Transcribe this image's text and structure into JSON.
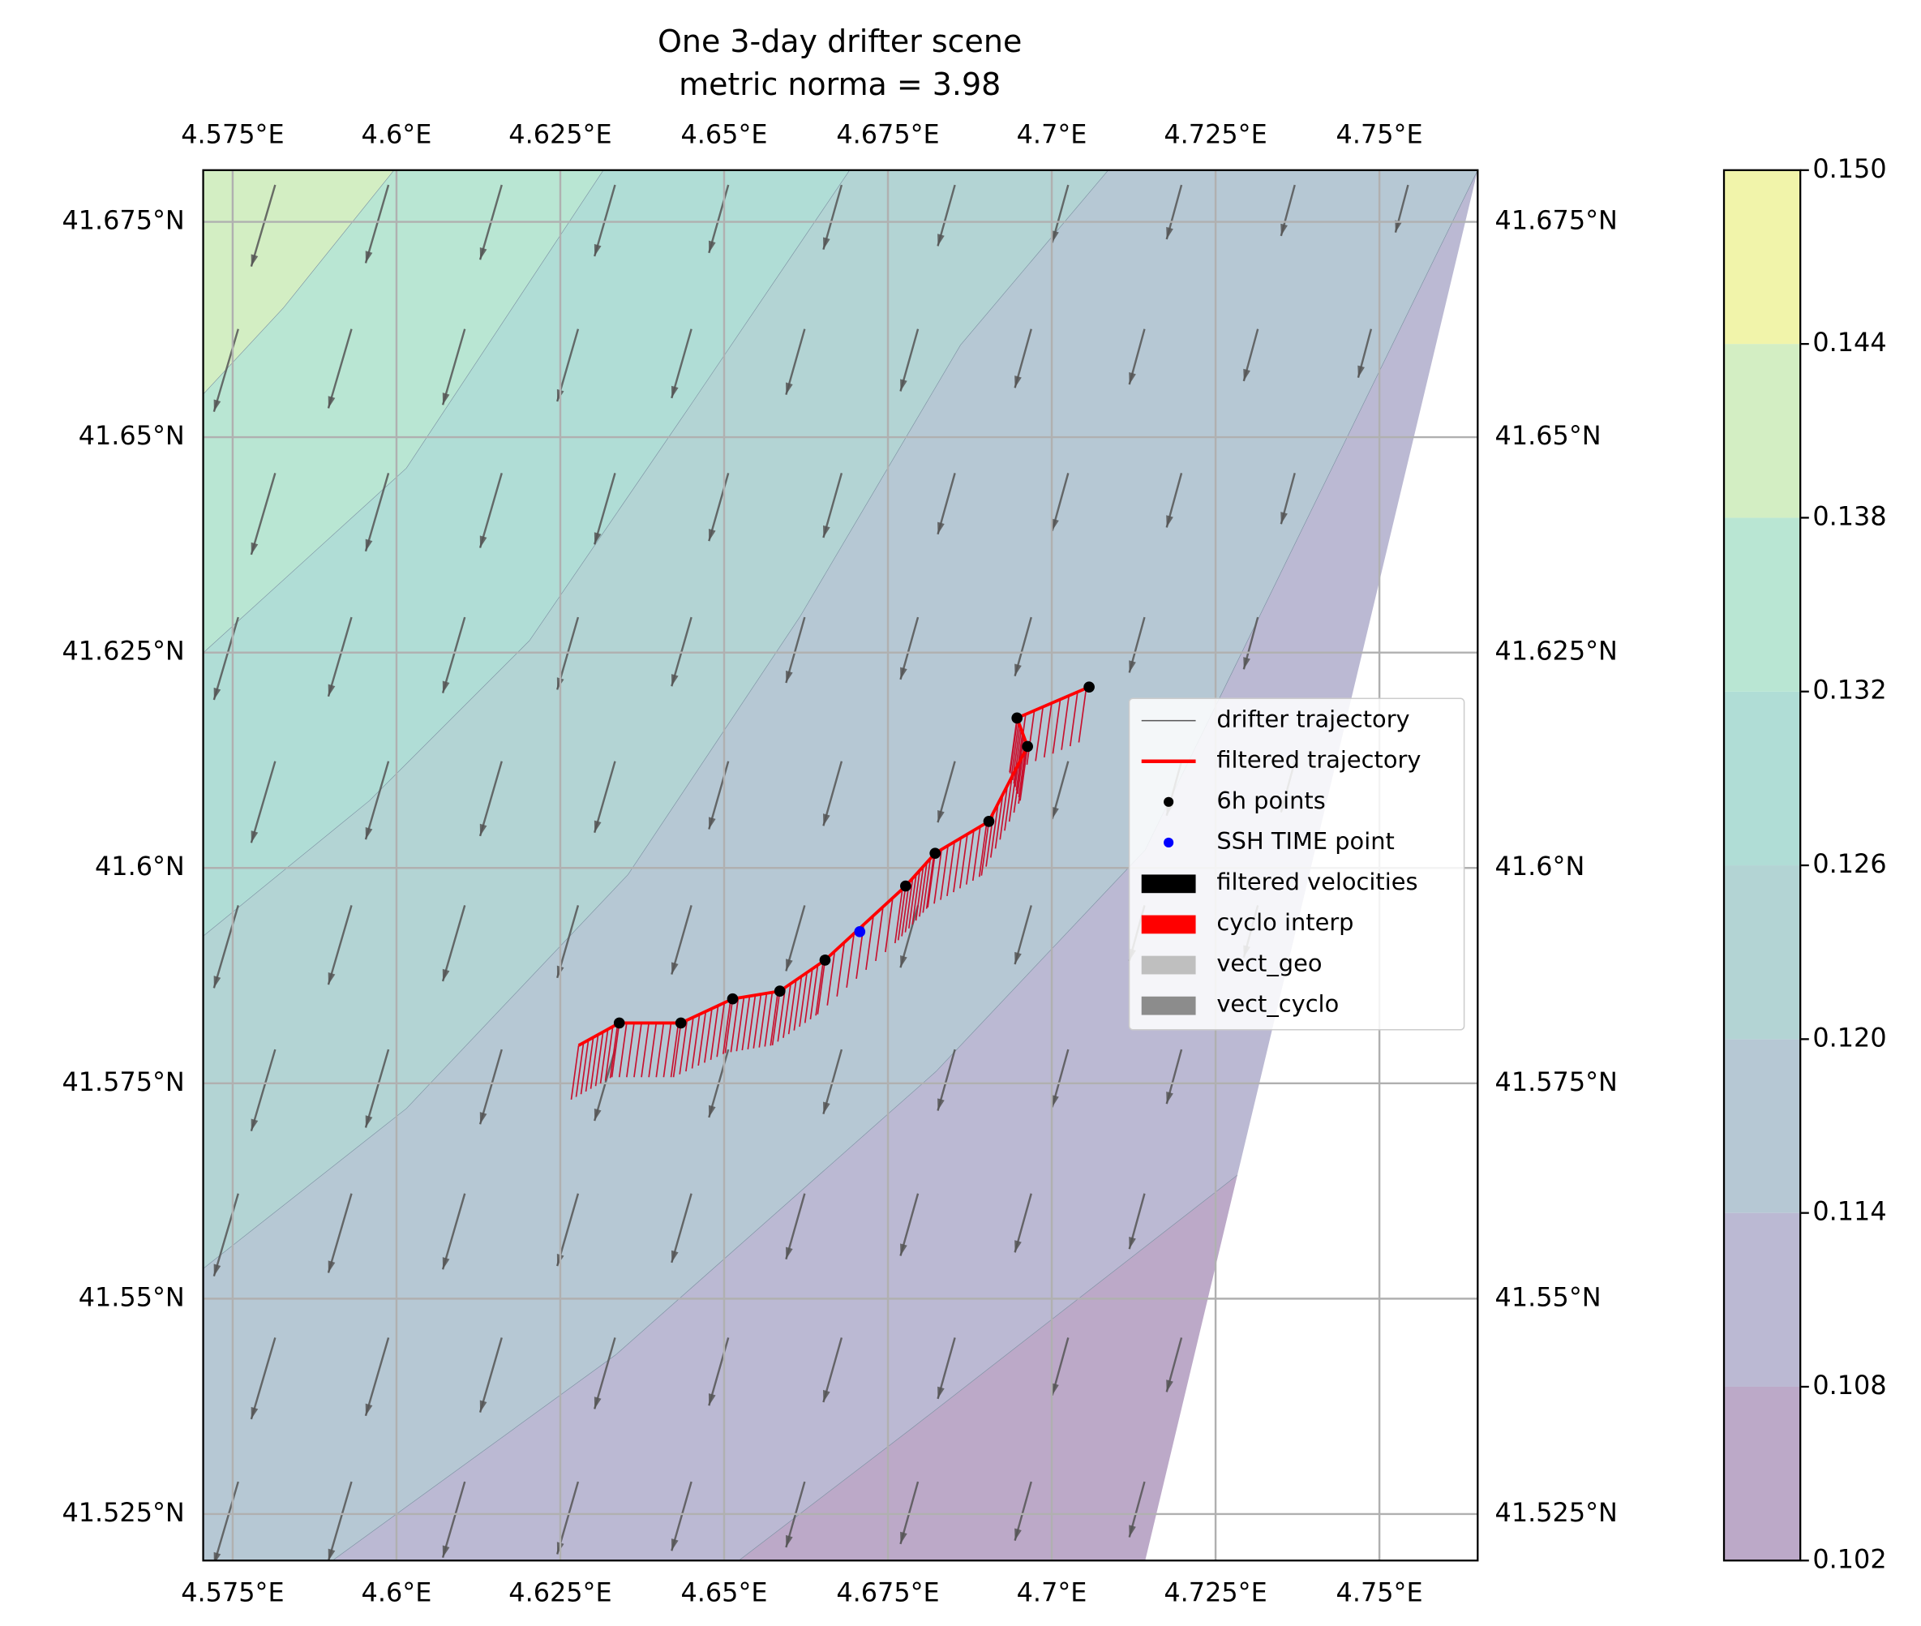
{
  "chart_data": {
    "type": "map",
    "title": "One 3-day drifter scene",
    "subtitle": "metric norma = 3.98",
    "xlim": [
      4.5705,
      4.765
    ],
    "ylim": [
      41.5196,
      41.681
    ],
    "xticks": [
      {
        "value": 4.575,
        "label": "4.575°E"
      },
      {
        "value": 4.6,
        "label": "4.6°E"
      },
      {
        "value": 4.625,
        "label": "4.625°E"
      },
      {
        "value": 4.65,
        "label": "4.65°E"
      },
      {
        "value": 4.675,
        "label": "4.675°E"
      },
      {
        "value": 4.7,
        "label": "4.7°E"
      },
      {
        "value": 4.725,
        "label": "4.725°E"
      },
      {
        "value": 4.75,
        "label": "4.75°E"
      }
    ],
    "yticks": [
      {
        "value": 41.525,
        "label": "41.525°N"
      },
      {
        "value": 41.55,
        "label": "41.55°N"
      },
      {
        "value": 41.575,
        "label": "41.575°N"
      },
      {
        "value": 41.6,
        "label": "41.6°N"
      },
      {
        "value": 41.625,
        "label": "41.625°N"
      },
      {
        "value": 41.65,
        "label": "41.65°N"
      },
      {
        "value": 41.675,
        "label": "41.675°N"
      }
    ],
    "grid": true,
    "series": [
      {
        "name": "drifter trajectory",
        "kind": "line",
        "color": "#555555",
        "x": [
          4.6278,
          4.634,
          4.6434,
          4.6513,
          4.6585,
          4.6654,
          4.6777,
          4.6822,
          4.6904,
          4.6963,
          4.6947,
          4.7057
        ],
        "y": [
          41.5794,
          41.582,
          41.582,
          41.5848,
          41.5857,
          41.5893,
          41.5979,
          41.6017,
          41.6054,
          41.6141,
          41.6174,
          41.621
        ]
      },
      {
        "name": "filtered trajectory",
        "kind": "line",
        "color": "#ff0000",
        "x": [
          4.6278,
          4.634,
          4.6434,
          4.6513,
          4.6585,
          4.6654,
          4.6777,
          4.6822,
          4.6904,
          4.6963,
          4.6947,
          4.7057
        ],
        "y": [
          41.5794,
          41.582,
          41.582,
          41.5848,
          41.5857,
          41.5893,
          41.5979,
          41.6017,
          41.6054,
          41.6141,
          41.6174,
          41.621
        ]
      },
      {
        "name": "6h points",
        "kind": "scatter",
        "color": "#000000",
        "x": [
          4.634,
          4.6434,
          4.6513,
          4.6585,
          4.6654,
          4.6777,
          4.6822,
          4.6904,
          4.6963,
          4.6947,
          4.7057
        ],
        "y": [
          41.582,
          41.582,
          41.5848,
          41.5857,
          41.5893,
          41.5979,
          41.6017,
          41.6054,
          41.6141,
          41.6174,
          41.621
        ]
      },
      {
        "name": "SSH TIME point",
        "kind": "scatter",
        "color": "#0000ff",
        "x": [
          4.6707
        ],
        "y": [
          41.5926
        ]
      }
    ],
    "legend_patches": [
      {
        "name": "filtered velocities",
        "color": "#000000"
      },
      {
        "name": "cyclo interp",
        "color": "#ff0000"
      },
      {
        "name": "vect_geo",
        "color": "#bfbfbf"
      },
      {
        "name": "vect_cyclo",
        "color": "#8c8c8c"
      }
    ],
    "colorbar": {
      "clim": [
        0.102,
        0.15
      ],
      "ticks": [
        0.102,
        0.108,
        0.114,
        {
          "value": 0.12,
          "label": "0.120"
        },
        0.126,
        0.132,
        0.138,
        0.144,
        {
          "value": 0.15,
          "label": "0.150"
        }
      ],
      "colors": [
        "#bca9c8",
        "#bbb9d3",
        "#b6c8d4",
        "#b3d4d4",
        "#b0ddd6",
        "#b9e6d3",
        "#d3eec3",
        "#f1f4aa"
      ]
    }
  }
}
